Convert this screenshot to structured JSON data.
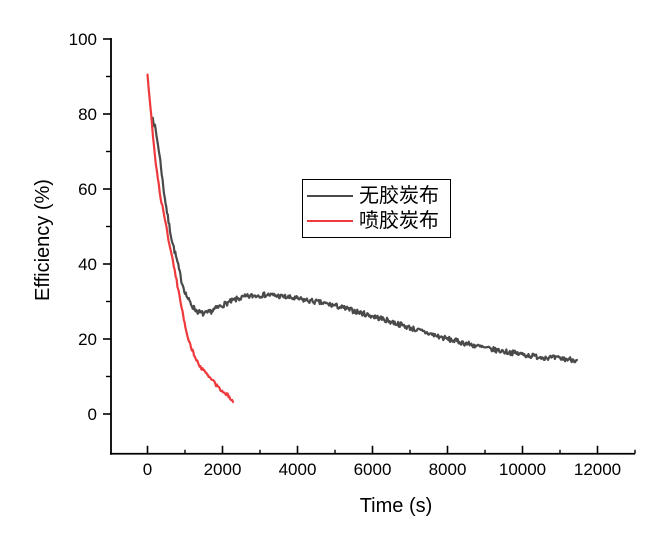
{
  "window": {
    "background": "#ffffff"
  },
  "chart_data": {
    "type": "line",
    "title": "",
    "xlabel": "Time (s)",
    "ylabel": "Efficiency (%)",
    "xlim": [
      -1000,
      13000
    ],
    "ylim": [
      -10.6,
      100
    ],
    "x_major_ticks": [
      0,
      2000,
      4000,
      6000,
      8000,
      10000,
      12000
    ],
    "x_minor_ticks": [
      1000,
      3000,
      5000,
      7000,
      9000,
      11000,
      13000
    ],
    "y_major_ticks": [
      0,
      20,
      40,
      60,
      80,
      100
    ],
    "y_minor_ticks": [
      10,
      30,
      50,
      70,
      90
    ],
    "grid": false,
    "axis_color": "#000000",
    "legend": {
      "position": "inside-top-center",
      "bordered": true
    },
    "noise_seed": 7,
    "series": [
      {
        "name": "无胶炭布",
        "color": "#4a4a4a",
        "line_width": 2.2,
        "noise": 0.7,
        "points": [
          [
            140,
            79
          ],
          [
            200,
            76.5
          ],
          [
            260,
            73
          ],
          [
            300,
            70.5
          ],
          [
            360,
            66
          ],
          [
            420,
            60.5
          ],
          [
            480,
            56.5
          ],
          [
            540,
            52.5
          ],
          [
            600,
            49
          ],
          [
            660,
            46
          ],
          [
            720,
            43.5
          ],
          [
            780,
            41.2
          ],
          [
            840,
            38.5
          ],
          [
            900,
            35.8
          ],
          [
            960,
            33.8
          ],
          [
            1020,
            32
          ],
          [
            1100,
            30.3
          ],
          [
            1200,
            28.7
          ],
          [
            1300,
            27.6
          ],
          [
            1400,
            27
          ],
          [
            1500,
            26.7
          ],
          [
            1600,
            26.9
          ],
          [
            1700,
            27.4
          ],
          [
            1800,
            28
          ],
          [
            1950,
            28.8
          ],
          [
            2100,
            29.5
          ],
          [
            2250,
            30.1
          ],
          [
            2400,
            30.7
          ],
          [
            2600,
            31.2
          ],
          [
            2800,
            31.5
          ],
          [
            3000,
            31.7
          ],
          [
            3200,
            31.8
          ],
          [
            3400,
            31.6
          ],
          [
            3600,
            31.3
          ],
          [
            3800,
            31
          ],
          [
            4000,
            30.7
          ],
          [
            4250,
            30.3
          ],
          [
            4500,
            29.9
          ],
          [
            4750,
            29.4
          ],
          [
            5000,
            28.9
          ],
          [
            5250,
            28.2
          ],
          [
            5500,
            27.5
          ],
          [
            5750,
            26.8
          ],
          [
            6000,
            26.1
          ],
          [
            6250,
            25.4
          ],
          [
            6500,
            24.6
          ],
          [
            6750,
            23.8
          ],
          [
            7000,
            23
          ],
          [
            7250,
            22.2
          ],
          [
            7500,
            21.5
          ],
          [
            7750,
            20.7
          ],
          [
            8000,
            20
          ],
          [
            8250,
            19.4
          ],
          [
            8500,
            18.8
          ],
          [
            8750,
            18.2
          ],
          [
            9000,
            17.6
          ],
          [
            9250,
            17.1
          ],
          [
            9500,
            16.7
          ],
          [
            9750,
            16.3
          ],
          [
            10000,
            15.9
          ],
          [
            10250,
            15.5
          ],
          [
            10500,
            15.2
          ],
          [
            10750,
            15
          ],
          [
            11000,
            14.8
          ],
          [
            11200,
            14.6
          ],
          [
            11450,
            14.4
          ]
        ]
      },
      {
        "name": "喷胶炭布",
        "color": "#ee3a3c",
        "line_width": 2.2,
        "noise": 0.4,
        "points": [
          [
            0,
            90.5
          ],
          [
            50,
            84.8
          ],
          [
            100,
            79.2
          ],
          [
            150,
            73.8
          ],
          [
            200,
            68.8
          ],
          [
            250,
            64.6
          ],
          [
            300,
            61
          ],
          [
            350,
            57.6
          ],
          [
            420,
            54.4
          ],
          [
            480,
            51
          ],
          [
            540,
            47.6
          ],
          [
            600,
            44.5
          ],
          [
            660,
            41.6
          ],
          [
            700,
            39.6
          ],
          [
            750,
            36.9
          ],
          [
            800,
            34.2
          ],
          [
            870,
            30.6
          ],
          [
            950,
            26.2
          ],
          [
            1030,
            22.4
          ],
          [
            1100,
            19.6
          ],
          [
            1180,
            17.3
          ],
          [
            1260,
            15.3
          ],
          [
            1350,
            13.6
          ],
          [
            1450,
            12.1
          ],
          [
            1550,
            10.9
          ],
          [
            1650,
            9.9
          ],
          [
            1750,
            8.8
          ],
          [
            1850,
            7.5
          ],
          [
            1950,
            6.5
          ],
          [
            2050,
            5.7
          ],
          [
            2120,
            5.2
          ],
          [
            2180,
            4.5
          ],
          [
            2230,
            4.1
          ],
          [
            2280,
            3.2
          ]
        ]
      }
    ]
  }
}
